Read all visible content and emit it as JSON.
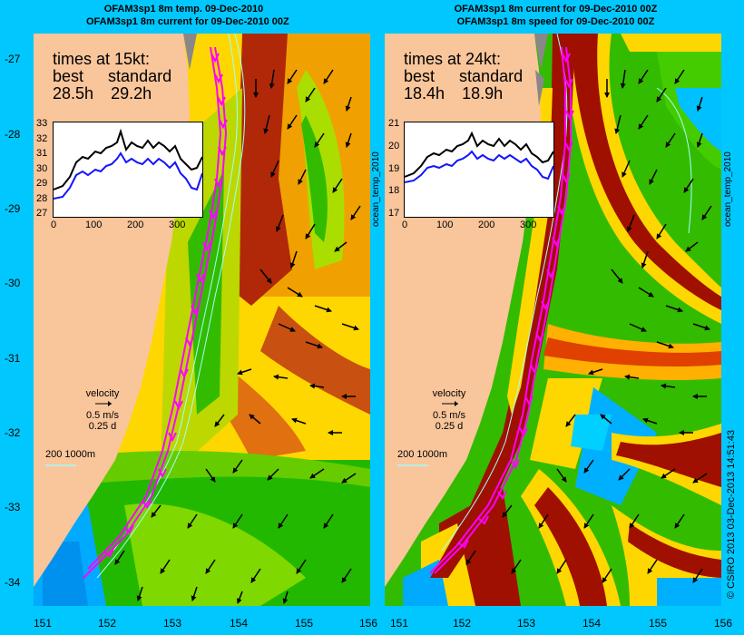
{
  "left": {
    "title_line1": "OFAM3sp1 8m temp. 09-Dec-2010",
    "title_line2": "OFAM3sp1 8m current for 09-Dec-2010 00Z",
    "times_title": "times at 15kt:",
    "times_best_label": "best",
    "times_standard_label": "standard",
    "times_best": "28.5h",
    "times_standard": "29.2h",
    "inset_yticks": [
      "33",
      "32",
      "31",
      "30",
      "29",
      "28",
      "27"
    ],
    "inset_xticks": [
      "0",
      "100",
      "200",
      "300"
    ],
    "velocity_label": "velocity",
    "velocity_speed": "0.5 m/s",
    "velocity_time": "0.25 d",
    "depth_label": "200  1000m"
  },
  "right": {
    "title_line1": "OFAM3sp1 8m current for 09-Dec-2010 00Z",
    "title_line2": "OFAM3sp1 8m speed for 09-Dec-2010 00Z",
    "times_title": "times at 24kt:",
    "times_best_label": "best",
    "times_standard_label": "standard",
    "times_best": "18.4h",
    "times_standard": "18.9h",
    "inset_yticks": [
      "21",
      "20",
      "19",
      "18",
      "17"
    ],
    "inset_xticks": [
      "0",
      "100",
      "200",
      "300"
    ],
    "velocity_label": "velocity",
    "velocity_speed": "0.5 m/s",
    "velocity_time": "0.25 d",
    "depth_label": "200  1000m"
  },
  "axis": {
    "yticks": [
      "-27",
      "-28",
      "-29",
      "-30",
      "-31",
      "-32",
      "-33",
      "-34"
    ],
    "xticks": [
      "151",
      "152",
      "153",
      "154",
      "155",
      "156"
    ]
  },
  "side_label_left": "ocean_temp_2010",
  "side_label_right": "ocean_temp_2010",
  "credit": "© CSIRO 2013   03-Dec-2013 14:51:43",
  "colors": {
    "background": "#00c8ff",
    "land": "#f9c59a",
    "black_line": "#000000",
    "blue_line": "#1414ff",
    "route_magenta": "#ff00ff",
    "depth_contour": "#a0ffff"
  }
}
